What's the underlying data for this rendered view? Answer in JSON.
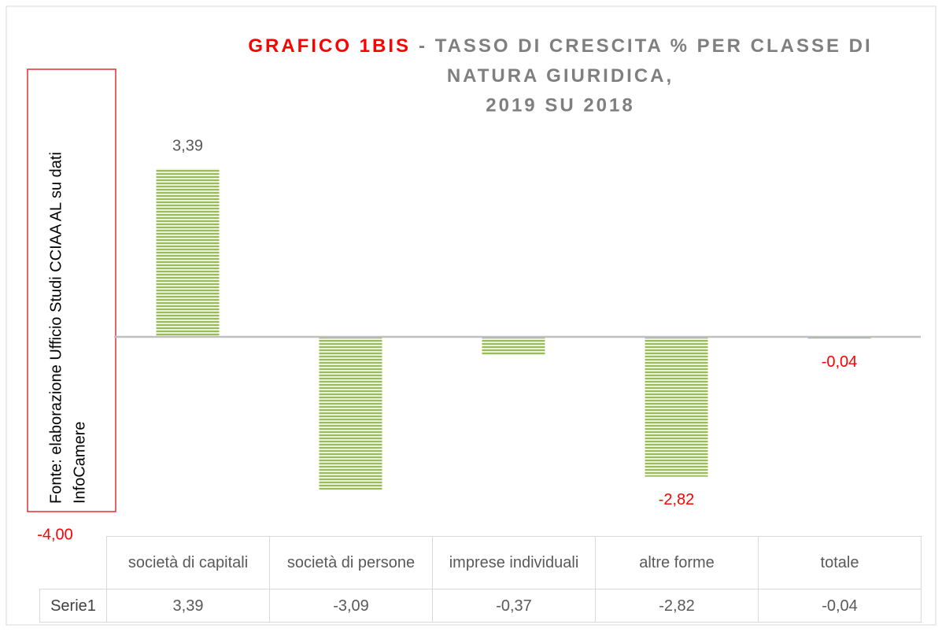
{
  "chart_data": {
    "type": "bar",
    "title_prefix": "GRAFICO 1BIS",
    "title_lines": [
      "- TASSO DI CRESCITA % PER CLASSE DI",
      "NATURA GIURIDICA,",
      "2019 SU 2018"
    ],
    "annotation_lines": [
      "Fonte: elaborazione Ufficio Studi CCIAA AL su dati",
      "InfoCamere"
    ],
    "categories": [
      "società di capitali",
      "società di persone",
      "imprese individuali",
      "altre forme",
      "totale"
    ],
    "series": [
      {
        "name": "Serie1",
        "color": "#9bbb59",
        "values": [
          3.39,
          -3.09,
          -0.37,
          -2.82,
          -0.04
        ],
        "value_labels": [
          "3,39",
          null,
          null,
          "-2,82",
          "-0,04"
        ],
        "table_labels": [
          "3,39",
          "-3,09",
          "-0,37",
          "-2,82",
          "-0,04"
        ]
      }
    ],
    "ylim": [
      -4,
      4
    ],
    "yticks": [
      {
        "value": -4,
        "label": "-4,00"
      }
    ],
    "label_color": "#595959",
    "negative_label_color": "#ff0000"
  }
}
